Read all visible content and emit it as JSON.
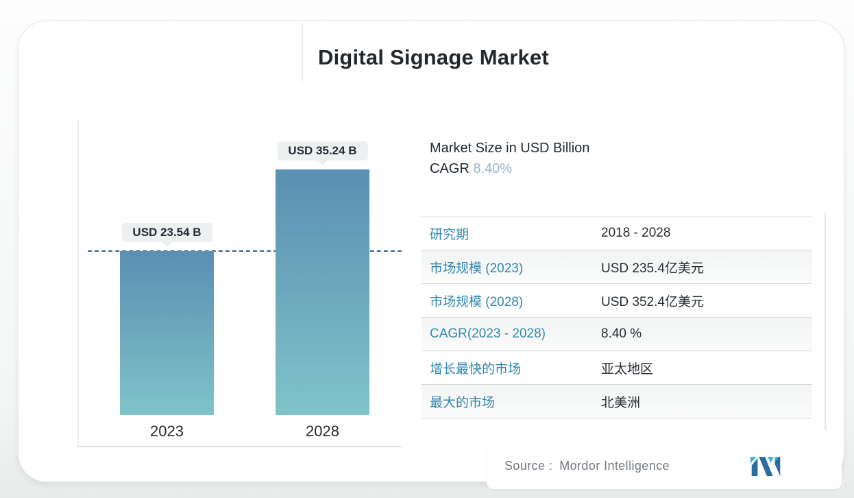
{
  "page": {
    "title": "Digital Signage Market"
  },
  "chart_data": {
    "type": "bar",
    "title": "Digital Signage Market",
    "categories": [
      "2023",
      "2028"
    ],
    "values": [
      23.54,
      35.24
    ],
    "value_labels": [
      "USD 23.54 B",
      "USD 35.24 B"
    ],
    "unit": "USD Billion",
    "ylabel": "Market Size in USD Billion",
    "reference_line_value": 23.54,
    "grid": false,
    "legend_position": "none",
    "bar_color_top": "#5b8fb3",
    "bar_color_bottom": "#7fc4ca",
    "dashed_line_color": "#35617e"
  },
  "summary": {
    "market_size_label": "Market Size in USD Billion",
    "cagr_label": "CAGR",
    "cagr_value": "8.40%"
  },
  "table": {
    "rows": [
      {
        "label": "研究期",
        "value": "2018 - 2028"
      },
      {
        "label": "市场规模 (2023)",
        "value": "USD 235.4亿美元"
      },
      {
        "label": "市场规模 (2028)",
        "value": "USD 352.4亿美元"
      },
      {
        "label": "CAGR(2023 - 2028)",
        "value": "8.40 %"
      },
      {
        "label": "增长最快的市场",
        "value": "亚太地区"
      },
      {
        "label": "最大的市场",
        "value": "北美洲"
      }
    ]
  },
  "footer": {
    "source_label": "Source :",
    "source_value": "Mordor Intelligence",
    "logo": "mordor-intelligence-logo"
  },
  "colors": {
    "table_label": "#3087ad",
    "cagr_value": "#94b6cf",
    "logo_blue": "#2c6ba1",
    "logo_teal": "#41b5c6",
    "pill_background": "#edf0f1"
  }
}
